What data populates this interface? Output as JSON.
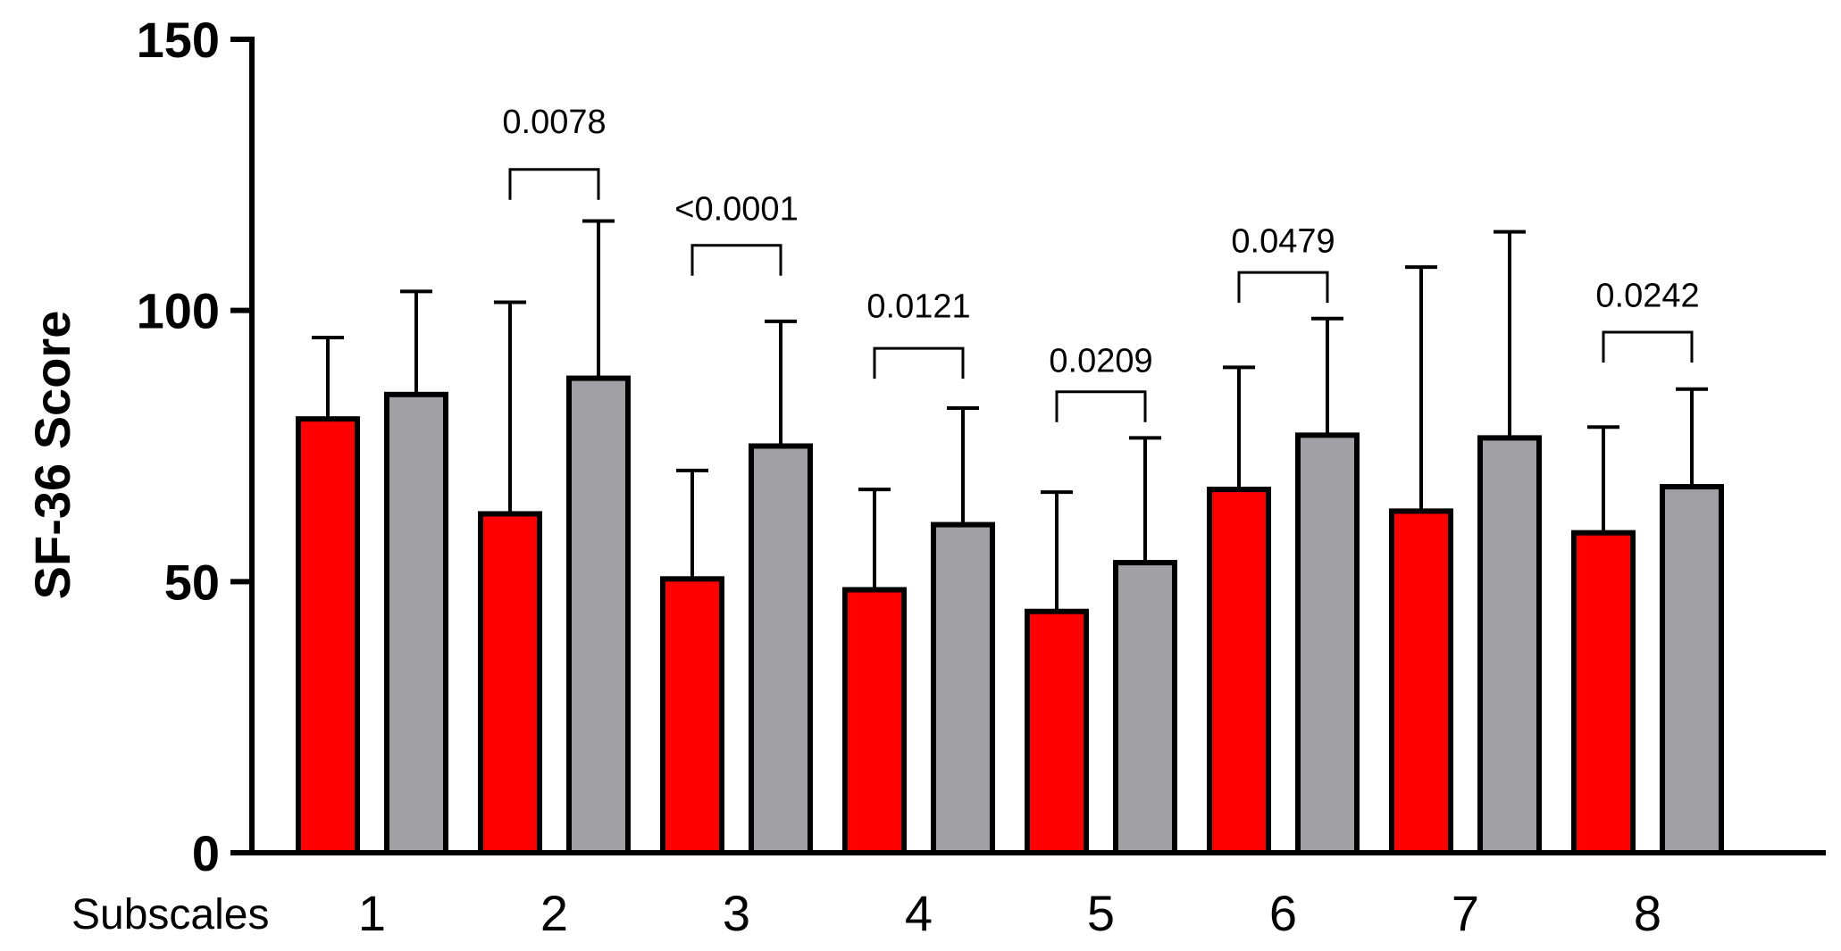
{
  "chart_data": {
    "type": "bar",
    "title": "",
    "xlabel": "Subscales",
    "ylabel": "SF-36 Score",
    "ylim": [
      0,
      150
    ],
    "yticks": [
      0,
      50,
      100,
      150
    ],
    "categories": [
      "1",
      "2",
      "3",
      "4",
      "5",
      "6",
      "7",
      "8"
    ],
    "grid": false,
    "legend": "none",
    "series": [
      {
        "color": "#ff0000",
        "values": [
          80,
          62.5,
          50.5,
          48.5,
          44.5,
          67,
          63,
          59
        ],
        "error_upper": [
          95,
          101.5,
          70.5,
          67,
          66.5,
          89.5,
          108,
          78.5
        ]
      },
      {
        "color": "#a0a0a5",
        "values": [
          84.5,
          87.5,
          75,
          60.5,
          53.5,
          77,
          76.5,
          67.5
        ],
        "error_upper": [
          103.5,
          116.5,
          98,
          82,
          76.5,
          98.5,
          114.5,
          85.5
        ]
      }
    ],
    "annotations": [
      {
        "category": "2",
        "text": "0.0078",
        "bracket_y": 126,
        "text_y": 135
      },
      {
        "category": "3",
        "text": "<0.0001",
        "bracket_y": 112,
        "text_y": 119
      },
      {
        "category": "4",
        "text": "0.0121",
        "bracket_y": 93,
        "text_y": 101
      },
      {
        "category": "5",
        "text": "0.0209",
        "bracket_y": 85,
        "text_y": 91
      },
      {
        "category": "6",
        "text": "0.0479",
        "bracket_y": 107,
        "text_y": 113
      },
      {
        "category": "8",
        "text": "0.0242",
        "bracket_y": 96,
        "text_y": 103
      }
    ]
  }
}
